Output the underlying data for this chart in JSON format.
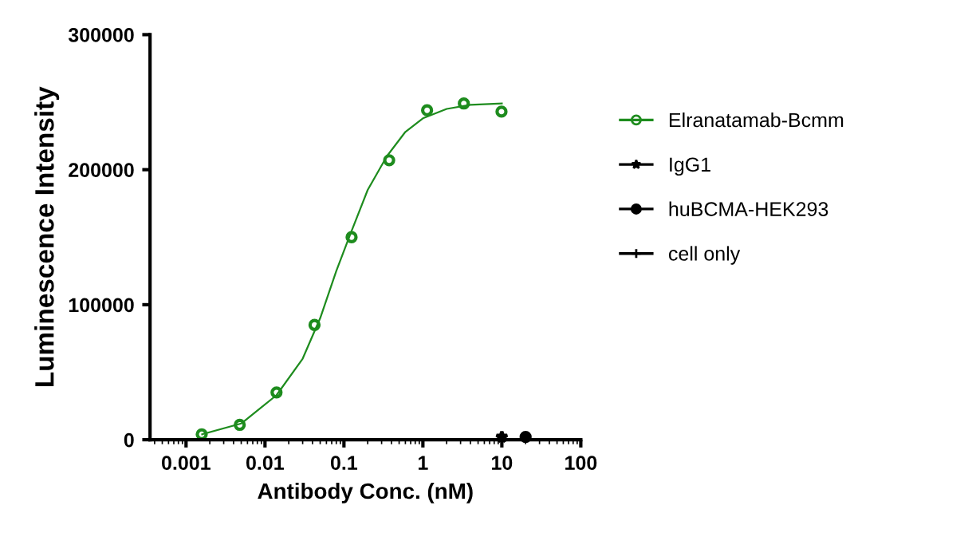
{
  "chart_data": {
    "type": "scatter",
    "xlabel": "Antibody Conc. (nM)",
    "ylabel": "Luminescence Intensity",
    "log": "x",
    "xlim": [
      0.00035,
      100
    ],
    "xticks": [
      0.001,
      0.01,
      0.1,
      1,
      10,
      100
    ],
    "ylim": [
      0,
      300000
    ],
    "yticks": [
      0,
      100000,
      200000,
      300000
    ],
    "grid": false,
    "legend": "right",
    "series": [
      {
        "name": "Elranatamab-Bcmm",
        "color": "#1e8c1e",
        "marker": "circle",
        "x": [
          0.00158,
          0.00479,
          0.014,
          0.0424,
          0.125,
          0.374,
          1.13,
          3.3,
          9.9
        ],
        "values": [
          4000,
          11000,
          35000,
          85000,
          150000,
          207000,
          244000,
          249000,
          243000
        ]
      },
      {
        "color": "#1e8c1e",
        "type": "line",
        "marker": "none",
        "x": [
          0.0016,
          0.005,
          0.014,
          0.03,
          0.05,
          0.08,
          0.12,
          0.2,
          0.35,
          0.6,
          1,
          2,
          4,
          10
        ],
        "values": [
          4000,
          12000,
          33000,
          60000,
          90000,
          125000,
          152000,
          185000,
          210000,
          228000,
          238000,
          245000,
          248000,
          249000
        ]
      },
      {
        "name": "IgG1",
        "color": "#000000",
        "marker": "star",
        "x": [
          10
        ],
        "values": [
          2000
        ]
      },
      {
        "name": "huBCMA-HEK293",
        "color": "#000000",
        "marker": "circle",
        "x": [
          20
        ],
        "values": [
          2000
        ]
      },
      {
        "name": "cell only",
        "color": "#000000",
        "marker": "cross",
        "x": [
          null
        ],
        "values": [
          null
        ]
      }
    ]
  }
}
